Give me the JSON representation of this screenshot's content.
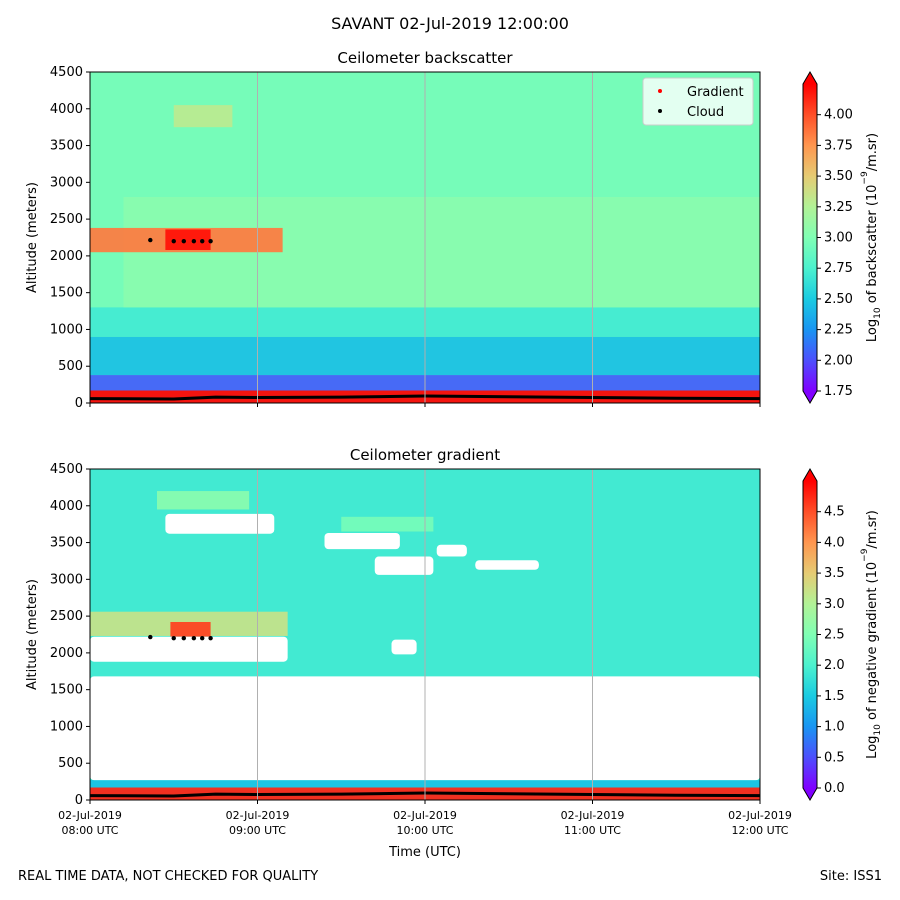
{
  "figure": {
    "suptitle": "SAVANT 02-Jul-2019 12:00:00",
    "footer_left": "REAL TIME DATA, NOT CHECKED FOR QUALITY",
    "footer_right": "Site: ISS1"
  },
  "chart_data": [
    {
      "type": "heatmap",
      "title": "Ceilometer backscatter",
      "xlabel": "",
      "ylabel": "Altitude (meters)",
      "xlim": [
        8,
        12
      ],
      "ylim": [
        0,
        4500
      ],
      "x_ticks": [
        8,
        9,
        10,
        11,
        12
      ],
      "x_tick_labels_shown": false,
      "y_ticks": [
        0,
        500,
        1000,
        1500,
        2000,
        2500,
        3000,
        3500,
        4000,
        4500
      ],
      "y_tick_labels": [
        "0",
        "500",
        "1000",
        "1500",
        "2000",
        "2500",
        "3000",
        "3500",
        "4000",
        "4500"
      ],
      "grid": "vertical",
      "legend": {
        "location": "top-right",
        "entries": [
          {
            "label": "Gradient",
            "color": "#ff0000"
          },
          {
            "label": "Cloud",
            "color": "#000000"
          }
        ]
      },
      "colorbar": {
        "label": "Log10 of backscatter (10^-9/m.sr)",
        "label_main": "Log",
        "label_sub": "10",
        "label_mid": " of backscatter (10",
        "label_sup": "−9",
        "label_end": "/m.sr)",
        "colormap": "rainbow",
        "range": [
          1.75,
          4.25
        ],
        "ticks": [
          1.75,
          2.0,
          2.25,
          2.5,
          2.75,
          3.0,
          3.25,
          3.5,
          3.75,
          4.0
        ],
        "tick_labels": [
          "1.75",
          "2.00",
          "2.25",
          "2.50",
          "2.75",
          "3.00",
          "3.25",
          "3.50",
          "3.75",
          "4.00"
        ],
        "extend": "both"
      },
      "background_value": 2.95,
      "features": [
        {
          "name": "surface-layer",
          "t": [
            8,
            12
          ],
          "alt": [
            0,
            170
          ],
          "value": 4.25
        },
        {
          "name": "boundary-layer-low",
          "t": [
            8,
            12
          ],
          "alt": [
            170,
            380
          ],
          "value": 2.05
        },
        {
          "name": "boundary-layer-mid",
          "t": [
            8,
            12
          ],
          "alt": [
            380,
            900
          ],
          "value": 2.45
        },
        {
          "name": "boundary-layer-top",
          "t": [
            8,
            12
          ],
          "alt": [
            900,
            1300
          ],
          "value": 2.7
        },
        {
          "name": "residual-layer",
          "t": [
            8.2,
            12
          ],
          "alt": [
            1300,
            2800
          ],
          "value": 3.05
        },
        {
          "name": "cloud-layer",
          "t": [
            8,
            9.15
          ],
          "alt": [
            2050,
            2380
          ],
          "value": 3.85
        },
        {
          "name": "cloud-layer-core",
          "t": [
            8.45,
            8.72
          ],
          "alt": [
            2080,
            2360
          ],
          "value": 4.2
        },
        {
          "name": "upper-aerosol-layer",
          "t": [
            8.5,
            8.85
          ],
          "alt": [
            3750,
            4050
          ],
          "value": 3.3
        }
      ],
      "cloud_points": [
        {
          "t": 8.36,
          "alt": 2215
        },
        {
          "t": 8.5,
          "alt": 2200
        },
        {
          "t": 8.56,
          "alt": 2200
        },
        {
          "t": 8.62,
          "alt": 2200
        },
        {
          "t": 8.67,
          "alt": 2200
        },
        {
          "t": 8.72,
          "alt": 2200
        }
      ],
      "cloud_base_line": [
        {
          "t": 8.0,
          "alt": 60
        },
        {
          "t": 8.5,
          "alt": 55
        },
        {
          "t": 8.75,
          "alt": 80
        },
        {
          "t": 9.0,
          "alt": 75
        },
        {
          "t": 9.5,
          "alt": 80
        },
        {
          "t": 10.0,
          "alt": 95
        },
        {
          "t": 10.5,
          "alt": 85
        },
        {
          "t": 11.0,
          "alt": 75
        },
        {
          "t": 11.5,
          "alt": 65
        },
        {
          "t": 12.0,
          "alt": 60
        }
      ]
    },
    {
      "type": "heatmap",
      "title": "Ceilometer gradient",
      "xlabel": "Time (UTC)",
      "ylabel": "Altitude (meters)",
      "xlim": [
        8,
        12
      ],
      "ylim": [
        0,
        4500
      ],
      "x_ticks": [
        8,
        9,
        10,
        11,
        12
      ],
      "x_tick_labels": [
        [
          "02-Jul-2019",
          "08:00 UTC"
        ],
        [
          "02-Jul-2019",
          "09:00 UTC"
        ],
        [
          "02-Jul-2019",
          "10:00 UTC"
        ],
        [
          "02-Jul-2019",
          "11:00 UTC"
        ],
        [
          "02-Jul-2019",
          "12:00 UTC"
        ]
      ],
      "y_ticks": [
        0,
        500,
        1000,
        1500,
        2000,
        2500,
        3000,
        3500,
        4000,
        4500
      ],
      "y_tick_labels": [
        "0",
        "500",
        "1000",
        "1500",
        "2000",
        "2500",
        "3000",
        "3500",
        "4000",
        "4500"
      ],
      "grid": "vertical",
      "colorbar": {
        "label": "Log10 of negative gradient (10^-9/m.sr)",
        "label_main": "Log",
        "label_sub": "10",
        "label_mid": " of negative gradient (10",
        "label_sup": "−9",
        "label_end": "/m.sr)",
        "colormap": "rainbow",
        "range": [
          0,
          5
        ],
        "ticks": [
          0,
          0.5,
          1.0,
          1.5,
          2.0,
          2.5,
          3.0,
          3.5,
          4.0,
          4.5
        ],
        "tick_labels": [
          "0.0",
          "0.5",
          "1.0",
          "1.5",
          "2.0",
          "2.5",
          "3.0",
          "3.5",
          "4.0",
          "4.5"
        ],
        "extend": "both"
      },
      "background_value": 1.9,
      "missing_regions": [
        {
          "t": [
            8,
            12
          ],
          "alt": [
            270,
            1680
          ]
        },
        {
          "t": [
            8.0,
            9.18
          ],
          "alt": [
            1880,
            2220
          ]
        },
        {
          "t": [
            8.45,
            9.1
          ],
          "alt": [
            3620,
            3890
          ]
        },
        {
          "t": [
            9.4,
            9.85
          ],
          "alt": [
            3410,
            3630
          ]
        },
        {
          "t": [
            9.7,
            10.05
          ],
          "alt": [
            3060,
            3310
          ]
        },
        {
          "t": [
            10.07,
            10.25
          ],
          "alt": [
            3310,
            3470
          ]
        },
        {
          "t": [
            10.3,
            10.68
          ],
          "alt": [
            3130,
            3260
          ]
        },
        {
          "t": [
            9.8,
            9.95
          ],
          "alt": [
            1980,
            2180
          ]
        }
      ],
      "features": [
        {
          "name": "surface-layer",
          "t": [
            8,
            12
          ],
          "alt": [
            0,
            170
          ],
          "value": 4.8
        },
        {
          "name": "surface-edge",
          "t": [
            8,
            12
          ],
          "alt": [
            170,
            270
          ],
          "value": 1.4
        },
        {
          "name": "cloud-layer",
          "t": [
            8,
            9.18
          ],
          "alt": [
            2230,
            2560
          ],
          "value": 3.2
        },
        {
          "name": "cloud-layer-core",
          "t": [
            8.48,
            8.72
          ],
          "alt": [
            2220,
            2420
          ],
          "value": 4.6
        },
        {
          "name": "upper-layer",
          "t": [
            8.4,
            8.95
          ],
          "alt": [
            3950,
            4200
          ],
          "value": 2.6
        },
        {
          "name": "mid-layer",
          "t": [
            9.5,
            10.05
          ],
          "alt": [
            3650,
            3850
          ],
          "value": 2.4
        }
      ],
      "cloud_points": [
        {
          "t": 8.36,
          "alt": 2215
        },
        {
          "t": 8.5,
          "alt": 2200
        },
        {
          "t": 8.56,
          "alt": 2200
        },
        {
          "t": 8.62,
          "alt": 2200
        },
        {
          "t": 8.67,
          "alt": 2200
        },
        {
          "t": 8.72,
          "alt": 2200
        }
      ],
      "cloud_base_line": [
        {
          "t": 8.0,
          "alt": 60
        },
        {
          "t": 8.5,
          "alt": 55
        },
        {
          "t": 8.75,
          "alt": 80
        },
        {
          "t": 9.0,
          "alt": 75
        },
        {
          "t": 9.5,
          "alt": 80
        },
        {
          "t": 10.0,
          "alt": 95
        },
        {
          "t": 10.5,
          "alt": 85
        },
        {
          "t": 11.0,
          "alt": 75
        },
        {
          "t": 11.5,
          "alt": 65
        },
        {
          "t": 12.0,
          "alt": 60
        }
      ]
    }
  ]
}
